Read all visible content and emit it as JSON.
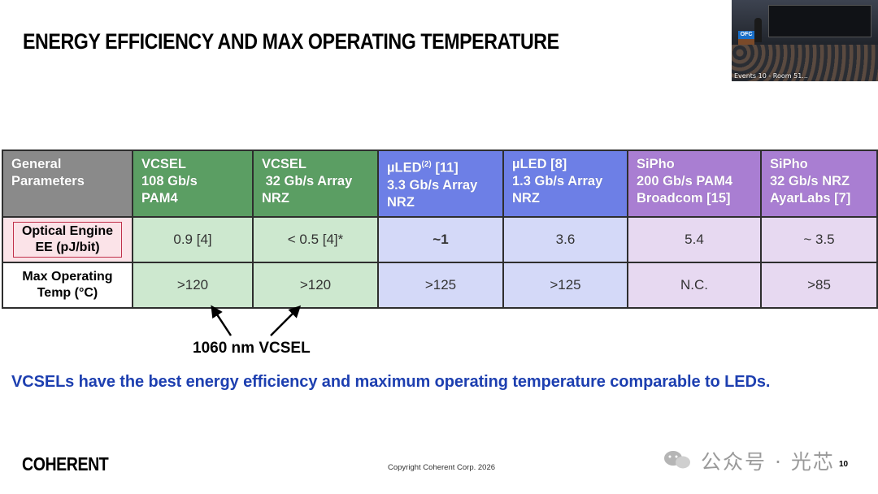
{
  "slide": {
    "title": "ENERGY EFFICIENCY AND MAX OPERATING TEMPERATURE",
    "video_caption": "Events 10 - Room 51...",
    "video_logo": "OFC",
    "annotation": "1060 nm VCSEL",
    "statement": "VCSELs have the best energy efficiency and maximum operating temperature comparable to LEDs.",
    "brand": "COHERENT",
    "copyright": "Copyright Coherent Corp. 2026",
    "watermark": "公众号 · 光芯",
    "page_number": "10"
  },
  "table": {
    "header_params": [
      "General",
      "Parameters"
    ],
    "columns": [
      {
        "lines": [
          "VCSEL",
          "108 Gb/s",
          "PAM4"
        ],
        "group": "vcsel"
      },
      {
        "lines": [
          "VCSEL",
          " 32 Gb/s Array",
          "NRZ"
        ],
        "group": "vcsel"
      },
      {
        "lines": [
          "µLED",
          "(2)",
          " [11]",
          "3.3 Gb/s Array",
          "NRZ"
        ],
        "group": "uled"
      },
      {
        "lines": [
          "µLED [8]",
          "1.3 Gb/s Array",
          "NRZ"
        ],
        "group": "uled"
      },
      {
        "lines": [
          "SiPho",
          "200 Gb/s PAM4",
          "Broadcom [15]"
        ],
        "group": "sipho"
      },
      {
        "lines": [
          "SiPho",
          "32 Gb/s NRZ",
          "AyarLabs [7]"
        ],
        "group": "sipho"
      }
    ],
    "rows": [
      {
        "label": [
          "Optical Engine",
          "EE (pJ/bit)"
        ],
        "values": [
          "0.9 [4]",
          "< 0.5 [4]*",
          "~1",
          "3.6",
          "5.4",
          "~ 3.5"
        ]
      },
      {
        "label": [
          "Max Operating",
          "Temp (°C)"
        ],
        "values": [
          ">120",
          ">120",
          ">125",
          ">125",
          "N.C.",
          ">85"
        ]
      }
    ]
  }
}
